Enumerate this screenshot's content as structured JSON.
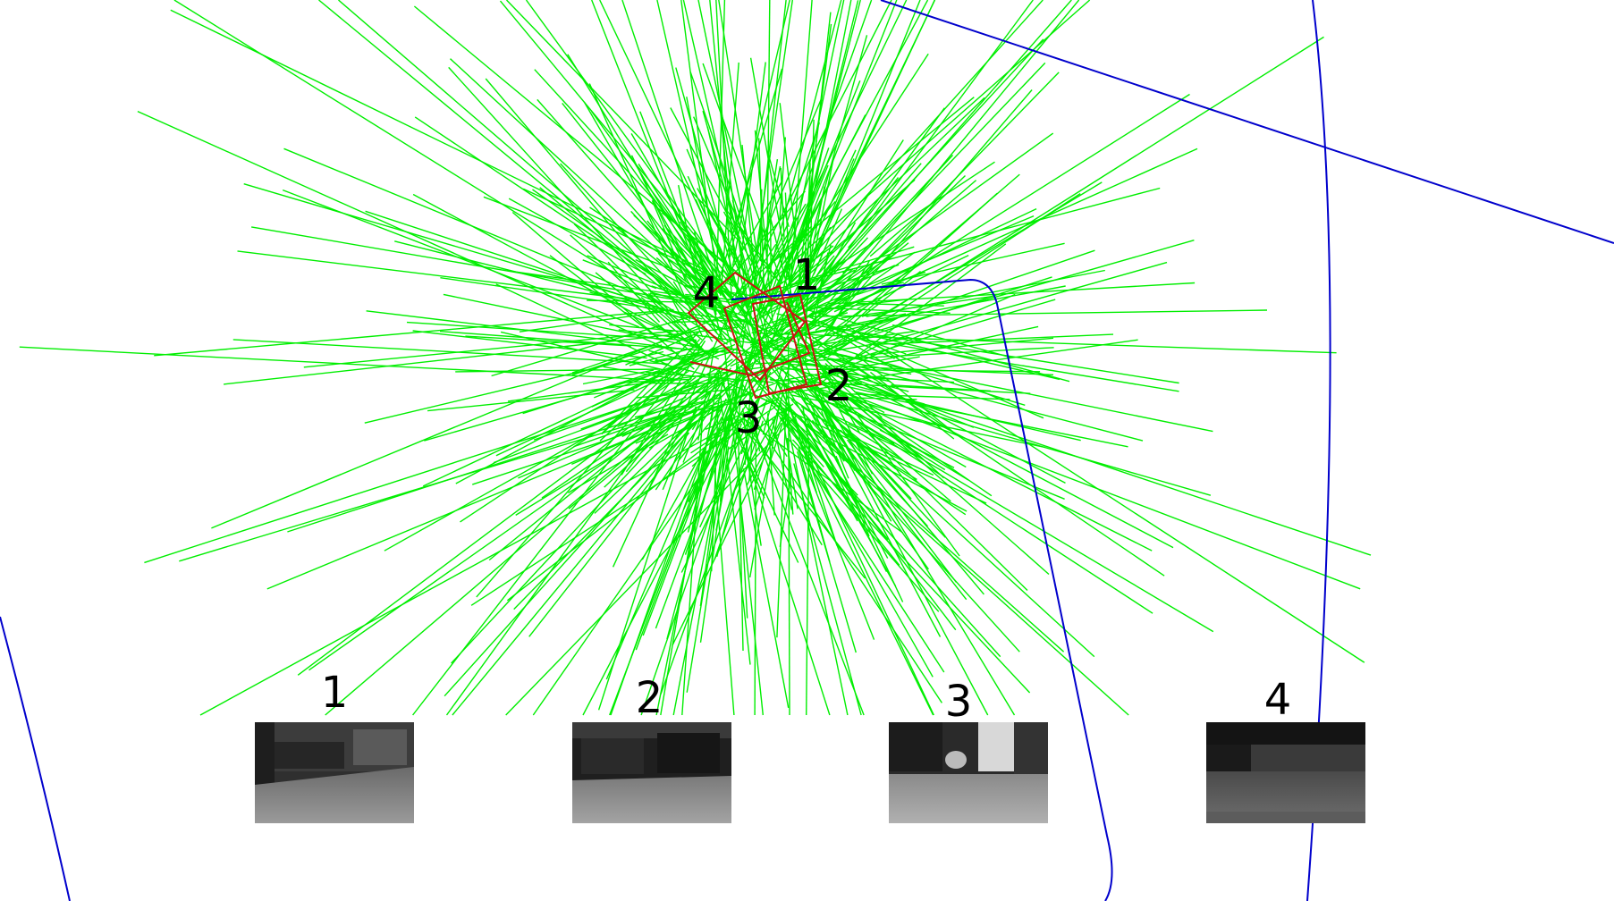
{
  "scene": {
    "pose_labels": [
      "1",
      "2",
      "3",
      "4"
    ],
    "thumbnail_labels": [
      "1",
      "2",
      "3",
      "4"
    ],
    "colors": {
      "rays": "#00ee00",
      "frames": "#cc1111",
      "trajectory": "#0000cc",
      "background": "#ffffff"
    }
  }
}
